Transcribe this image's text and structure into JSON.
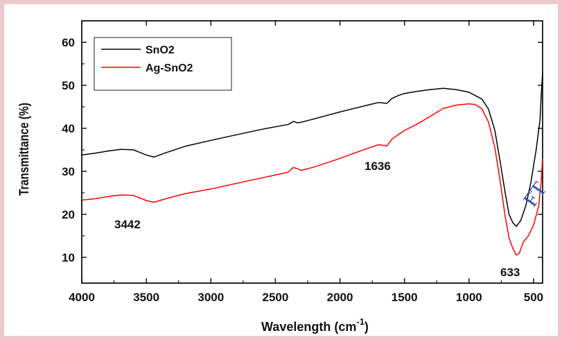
{
  "chart_data": {
    "type": "line",
    "title": "",
    "xlabel": "Wavelength (cm⁻¹)",
    "xlabel_main": "Wavelength (cm",
    "xlabel_sup": "-1",
    "xlabel_close": ")",
    "ylabel": "Transmittance (%)",
    "xlim": [
      4000,
      430
    ],
    "ylim": [
      4,
      65
    ],
    "x_reversed": true,
    "xticks": [
      "4000",
      "3500",
      "3000",
      "2500",
      "2000",
      "1500",
      "1000",
      "500"
    ],
    "yticks": [
      "10",
      "20",
      "30",
      "40",
      "50",
      "60"
    ],
    "legend_position": "top-left",
    "series": [
      {
        "name": "SnO2",
        "color": "#000000",
        "x": [
          4000,
          3900,
          3800,
          3700,
          3600,
          3500,
          3442,
          3350,
          3200,
          3000,
          2800,
          2600,
          2400,
          2360,
          2330,
          2300,
          2200,
          2000,
          1800,
          1700,
          1636,
          1600,
          1550,
          1500,
          1400,
          1300,
          1200,
          1100,
          1000,
          900,
          850,
          800,
          760,
          720,
          690,
          660,
          633,
          600,
          560,
          520,
          480,
          450,
          440,
          430
        ],
        "y": [
          33.8,
          34.2,
          34.7,
          35.1,
          35.0,
          33.8,
          33.3,
          34.3,
          35.8,
          37.2,
          38.5,
          39.8,
          40.9,
          41.6,
          41.3,
          41.4,
          42.2,
          43.8,
          45.3,
          46.0,
          45.8,
          46.9,
          47.6,
          48.1,
          48.6,
          49.0,
          49.3,
          49.0,
          48.4,
          46.8,
          44.5,
          39.5,
          32.5,
          25.0,
          20.0,
          18.0,
          17.2,
          18.5,
          22.0,
          27.5,
          35.0,
          42.0,
          48.0,
          53.0
        ]
      },
      {
        "name": "Ag-SnO2",
        "color": "#ff0000",
        "x": [
          4000,
          3900,
          3800,
          3700,
          3600,
          3500,
          3442,
          3350,
          3200,
          3000,
          2800,
          2600,
          2400,
          2360,
          2330,
          2300,
          2200,
          2000,
          1800,
          1700,
          1636,
          1600,
          1550,
          1500,
          1400,
          1300,
          1200,
          1100,
          1000,
          950,
          900,
          850,
          800,
          760,
          720,
          690,
          660,
          633,
          610,
          580,
          540,
          500,
          460,
          440,
          430
        ],
        "y": [
          23.3,
          23.6,
          24.1,
          24.5,
          24.4,
          23.2,
          22.8,
          23.6,
          24.8,
          25.9,
          27.2,
          28.5,
          29.8,
          30.9,
          30.6,
          30.2,
          31.0,
          33.0,
          35.2,
          36.2,
          35.9,
          37.4,
          38.5,
          39.5,
          41.0,
          42.8,
          44.6,
          45.4,
          45.7,
          45.5,
          44.5,
          41.5,
          35.5,
          28.0,
          19.5,
          14.5,
          12.0,
          10.5,
          11.0,
          13.5,
          15.0,
          17.5,
          22.0,
          28.0,
          33.0
        ]
      }
    ],
    "annotations": [
      {
        "text": "3442"
      },
      {
        "text": "1636"
      },
      {
        "text": "633"
      }
    ]
  },
  "watermark": "FT"
}
